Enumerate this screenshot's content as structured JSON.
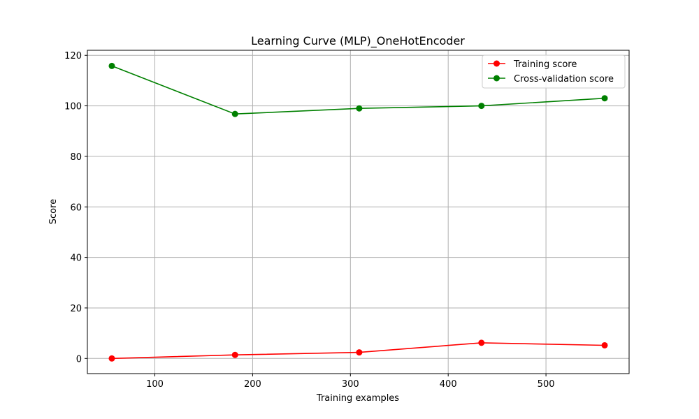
{
  "chart_data": {
    "type": "line",
    "title": "Learning Curve (MLP)_OneHotEncoder",
    "xlabel": "Training examples",
    "ylabel": "Score",
    "xlim": [
      31,
      585
    ],
    "ylim": [
      -6,
      122
    ],
    "xticks": [
      100,
      200,
      300,
      400,
      500
    ],
    "yticks": [
      0,
      20,
      40,
      60,
      80,
      100,
      120
    ],
    "grid": true,
    "legend_position": "upper right",
    "series": [
      {
        "name": "Training score",
        "color": "#ff0000",
        "x": [
          56,
          182,
          309,
          434,
          560
        ],
        "y": [
          0.0,
          1.4,
          2.4,
          6.2,
          5.2
        ]
      },
      {
        "name": "Cross-validation score",
        "color": "#008000",
        "x": [
          56,
          182,
          309,
          434,
          560
        ],
        "y": [
          115.8,
          96.8,
          99.0,
          100.0,
          103.0
        ]
      }
    ]
  }
}
